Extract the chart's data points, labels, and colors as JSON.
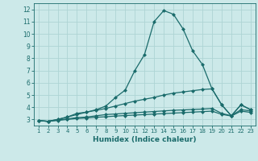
{
  "title": "",
  "xlabel": "Humidex (Indice chaleur)",
  "ylabel": "",
  "bg_color": "#cce9e9",
  "grid_color": "#aed4d4",
  "line_color": "#1a6b6b",
  "x": [
    1,
    2,
    3,
    4,
    5,
    6,
    7,
    8,
    9,
    10,
    11,
    12,
    13,
    14,
    15,
    16,
    17,
    18,
    19,
    20,
    21,
    22,
    23
  ],
  "line1": [
    2.9,
    2.85,
    3.0,
    3.2,
    3.5,
    3.6,
    3.8,
    4.1,
    4.8,
    5.4,
    7.0,
    8.3,
    11.0,
    11.9,
    11.6,
    10.4,
    8.6,
    7.5,
    5.5,
    4.2,
    3.3,
    4.2,
    3.8
  ],
  "line2": [
    2.9,
    2.85,
    3.0,
    3.2,
    3.4,
    3.6,
    3.75,
    3.9,
    4.1,
    4.3,
    4.5,
    4.65,
    4.8,
    5.0,
    5.15,
    5.25,
    5.35,
    5.45,
    5.5,
    4.2,
    3.3,
    4.2,
    3.8
  ],
  "line3": [
    2.9,
    2.85,
    2.95,
    3.05,
    3.15,
    3.2,
    3.3,
    3.4,
    3.45,
    3.5,
    3.55,
    3.6,
    3.65,
    3.7,
    3.75,
    3.78,
    3.82,
    3.85,
    3.9,
    3.5,
    3.3,
    3.8,
    3.7
  ],
  "line4": [
    2.9,
    2.85,
    2.92,
    3.0,
    3.08,
    3.12,
    3.18,
    3.22,
    3.28,
    3.32,
    3.36,
    3.4,
    3.44,
    3.48,
    3.52,
    3.56,
    3.6,
    3.64,
    3.68,
    3.42,
    3.28,
    3.68,
    3.58
  ],
  "ylim": [
    2.5,
    12.5
  ],
  "xlim": [
    0.5,
    23.5
  ],
  "yticks": [
    3,
    4,
    5,
    6,
    7,
    8,
    9,
    10,
    11,
    12
  ],
  "xticks": [
    1,
    2,
    3,
    4,
    5,
    6,
    7,
    8,
    9,
    10,
    11,
    12,
    13,
    14,
    15,
    16,
    17,
    18,
    19,
    20,
    21,
    22,
    23
  ]
}
